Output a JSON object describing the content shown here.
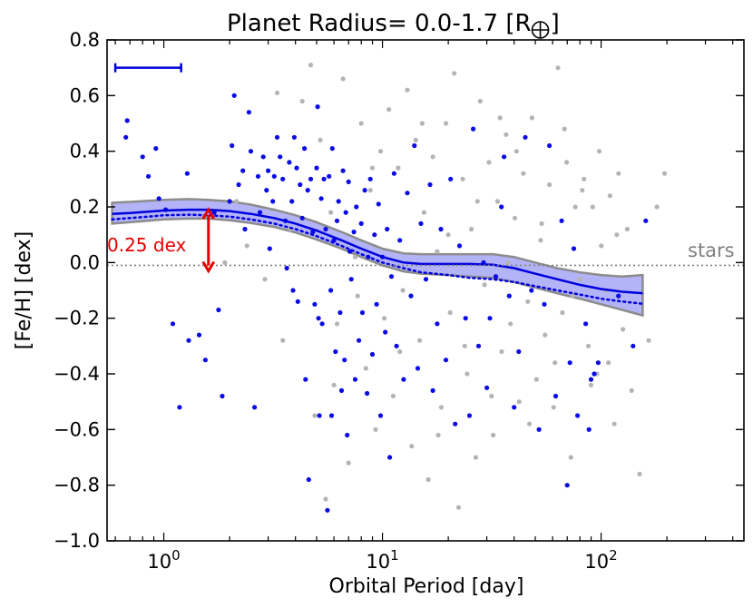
{
  "chart_data": {
    "type": "scatter",
    "title": "Planet Radius= 0.0-1.7 [R",
    "title_suffix": "]",
    "title_symbol": "earth-symbol",
    "xlabel": "Orbital Period [day]",
    "ylabel": "[Fe/H] [dex]",
    "xscale": "log",
    "xlim": [
      0.55,
      450
    ],
    "ylim": [
      -1.0,
      0.8
    ],
    "yticks": [
      -1.0,
      -0.8,
      -0.6,
      -0.4,
      -0.2,
      0.0,
      0.2,
      0.4,
      0.6,
      0.8
    ],
    "ytick_labels": [
      "−1.0",
      "−0.8",
      "−0.6",
      "−0.4",
      "−0.2",
      "0.0",
      "0.2",
      "0.4",
      "0.6",
      "0.8"
    ],
    "xticks": [
      {
        "value": 1,
        "base": "10",
        "exp": "0"
      },
      {
        "value": 10,
        "base": "10",
        "exp": "1"
      },
      {
        "value": 100,
        "base": "10",
        "exp": "2"
      }
    ],
    "colors": {
      "planets": "#0a0ae6",
      "stars": "#b4b4b4",
      "trend": "#0000dd",
      "band_fill": "#8a8af2",
      "band_edge": "#8c8c8c",
      "annotation": "#e60000",
      "reference": "#808080"
    },
    "reference_line": {
      "y": -0.01,
      "label": "stars"
    },
    "annotation": {
      "label": "0.25 dex",
      "x": 1.6,
      "y_top": 0.19,
      "y_bottom": -0.03
    },
    "error_bar": {
      "x_from": 0.6,
      "x_to": 1.2,
      "y": 0.7
    },
    "trend": {
      "x": [
        0.58,
        0.7,
        0.85,
        1.0,
        1.3,
        1.6,
        2.0,
        2.5,
        3.2,
        4.0,
        5.0,
        6.5,
        8.0,
        10,
        12.5,
        15,
        20,
        25,
        32,
        40,
        50,
        63,
        80,
        100,
        125,
        155
      ],
      "median": [
        0.175,
        0.178,
        0.183,
        0.187,
        0.19,
        0.19,
        0.185,
        0.175,
        0.16,
        0.14,
        0.115,
        0.08,
        0.05,
        0.02,
        0.0,
        -0.005,
        -0.005,
        -0.005,
        -0.008,
        -0.02,
        -0.04,
        -0.06,
        -0.08,
        -0.095,
        -0.105,
        -0.11
      ],
      "mean": [
        0.155,
        0.16,
        0.165,
        0.17,
        0.172,
        0.17,
        0.165,
        0.155,
        0.14,
        0.12,
        0.095,
        0.06,
        0.03,
        0.0,
        -0.02,
        -0.035,
        -0.045,
        -0.055,
        -0.06,
        -0.07,
        -0.085,
        -0.1,
        -0.115,
        -0.13,
        -0.14,
        -0.148
      ],
      "upper": [
        0.215,
        0.218,
        0.222,
        0.225,
        0.228,
        0.225,
        0.22,
        0.208,
        0.19,
        0.17,
        0.145,
        0.11,
        0.08,
        0.05,
        0.033,
        0.03,
        0.03,
        0.03,
        0.03,
        0.02,
        0.0,
        -0.02,
        -0.035,
        -0.045,
        -0.05,
        -0.045
      ],
      "lower": [
        0.14,
        0.145,
        0.15,
        0.155,
        0.158,
        0.158,
        0.152,
        0.142,
        0.128,
        0.108,
        0.083,
        0.05,
        0.02,
        -0.01,
        -0.032,
        -0.04,
        -0.045,
        -0.05,
        -0.055,
        -0.07,
        -0.09,
        -0.11,
        -0.13,
        -0.15,
        -0.17,
        -0.19
      ]
    },
    "series": [
      {
        "name": "planets",
        "color": "#0a0ae6",
        "points": [
          [
            0.68,
            0.51
          ],
          [
            0.67,
            0.45
          ],
          [
            0.8,
            0.38
          ],
          [
            0.85,
            0.31
          ],
          [
            0.92,
            0.41
          ],
          [
            0.95,
            0.23
          ],
          [
            1.02,
            0.19
          ],
          [
            1.1,
            -0.22
          ],
          [
            1.18,
            -0.52
          ],
          [
            1.28,
            0.32
          ],
          [
            1.3,
            -0.28
          ],
          [
            1.45,
            -0.26
          ],
          [
            1.55,
            -0.35
          ],
          [
            1.7,
            0.18
          ],
          [
            1.78,
            -0.17
          ],
          [
            1.85,
            -0.48
          ],
          [
            2.0,
            0.22
          ],
          [
            2.05,
            0.42
          ],
          [
            2.1,
            0.6
          ],
          [
            2.2,
            0.28
          ],
          [
            2.3,
            0.33
          ],
          [
            2.35,
            0.12
          ],
          [
            2.45,
            0.54
          ],
          [
            2.5,
            0.4
          ],
          [
            2.6,
            -0.52
          ],
          [
            2.7,
            0.31
          ],
          [
            2.75,
            0.18
          ],
          [
            2.85,
            0.38
          ],
          [
            2.95,
            0.26
          ],
          [
            3.0,
            0.33
          ],
          [
            3.05,
            0.05
          ],
          [
            3.15,
            0.22
          ],
          [
            3.2,
            0.31
          ],
          [
            3.3,
            0.45
          ],
          [
            3.4,
            0.38
          ],
          [
            3.5,
            0.3
          ],
          [
            3.6,
            0.15
          ],
          [
            3.65,
            -0.02
          ],
          [
            3.75,
            0.36
          ],
          [
            3.85,
            0.22
          ],
          [
            3.9,
            -0.1
          ],
          [
            3.95,
            0.45
          ],
          [
            4.05,
            0.34
          ],
          [
            4.1,
            -0.14
          ],
          [
            4.2,
            0.28
          ],
          [
            4.3,
            0.16
          ],
          [
            4.4,
            0.41
          ],
          [
            4.45,
            -0.42
          ],
          [
            4.55,
            0.26
          ],
          [
            4.6,
            -0.78
          ],
          [
            4.7,
            0.3
          ],
          [
            4.8,
            0.11
          ],
          [
            4.9,
            -0.15
          ],
          [
            5.0,
            0.34
          ],
          [
            5.05,
            0.56
          ],
          [
            5.1,
            -0.2
          ],
          [
            5.15,
            -0.55
          ],
          [
            5.25,
            0.23
          ],
          [
            5.3,
            -0.22
          ],
          [
            5.4,
            0.3
          ],
          [
            5.5,
            0.12
          ],
          [
            5.6,
            -0.89
          ],
          [
            5.7,
            0.31
          ],
          [
            5.8,
            -0.1
          ],
          [
            5.85,
            -0.55
          ],
          [
            5.9,
            0.41
          ],
          [
            6.0,
            0.08
          ],
          [
            6.1,
            -0.32
          ],
          [
            6.2,
            0.15
          ],
          [
            6.3,
            0.22
          ],
          [
            6.4,
            -0.18
          ],
          [
            6.5,
            -0.46
          ],
          [
            6.6,
            0.33
          ],
          [
            6.7,
            -0.35
          ],
          [
            6.8,
            0.18
          ],
          [
            6.9,
            -0.62
          ],
          [
            7.0,
            0.29
          ],
          [
            7.1,
            0.04
          ],
          [
            7.2,
            -0.06
          ],
          [
            7.4,
            0.11
          ],
          [
            7.5,
            -0.42
          ],
          [
            7.6,
            0.2
          ],
          [
            7.8,
            -0.28
          ],
          [
            8.0,
            0.14
          ],
          [
            8.1,
            -0.18
          ],
          [
            8.3,
            0.26
          ],
          [
            8.5,
            -0.47
          ],
          [
            8.6,
            0.02
          ],
          [
            8.8,
            0.3
          ],
          [
            9.0,
            -0.33
          ],
          [
            9.2,
            0.1
          ],
          [
            9.4,
            -0.15
          ],
          [
            9.6,
            0.21
          ],
          [
            9.8,
            -0.55
          ],
          [
            10.0,
            0.02
          ],
          [
            10.3,
            -0.25
          ],
          [
            10.5,
            0.12
          ],
          [
            10.8,
            -0.7
          ],
          [
            11.0,
            -0.05
          ],
          [
            11.3,
            0.32
          ],
          [
            11.6,
            -0.3
          ],
          [
            12.0,
            0.08
          ],
          [
            12.5,
            -0.42
          ],
          [
            13.0,
            0.25
          ],
          [
            13.5,
            -0.12
          ],
          [
            14.0,
            0.42
          ],
          [
            14.5,
            -0.38
          ],
          [
            15.0,
            0.14
          ],
          [
            15.8,
            -0.06
          ],
          [
            16.5,
            0.28
          ],
          [
            17.0,
            -0.46
          ],
          [
            17.8,
            -0.22
          ],
          [
            18.5,
            0.12
          ],
          [
            19.5,
            -0.35
          ],
          [
            20.5,
            0.3
          ],
          [
            21.5,
            -0.58
          ],
          [
            22.5,
            0.06
          ],
          [
            24.0,
            -0.2
          ],
          [
            25.0,
            -0.55
          ],
          [
            26.0,
            0.48
          ],
          [
            27.5,
            -0.3
          ],
          [
            29.0,
            0.0
          ],
          [
            30.0,
            -0.45
          ],
          [
            31.0,
            -0.2
          ],
          [
            33.0,
            -0.05
          ],
          [
            35.0,
            0.2
          ],
          [
            36.0,
            0.38
          ],
          [
            38.0,
            -0.12
          ],
          [
            40.0,
            -0.52
          ],
          [
            42.0,
            -0.32
          ],
          [
            45.0,
            0.45
          ],
          [
            48.0,
            -0.1
          ],
          [
            52.0,
            -0.6
          ],
          [
            55.0,
            -0.15
          ],
          [
            58.0,
            0.42
          ],
          [
            62.0,
            -0.48
          ],
          [
            66.0,
            0.15
          ],
          [
            70.0,
            -0.8
          ],
          [
            72.0,
            -0.36
          ],
          [
            75.0,
            0.05
          ],
          [
            78.0,
            -0.55
          ],
          [
            85.0,
            -0.22
          ],
          [
            88.0,
            -0.6
          ],
          [
            90.0,
            -0.42
          ],
          [
            93.0,
            -0.4
          ],
          [
            97.0,
            -0.36
          ],
          [
            120.0,
            -0.12
          ],
          [
            140.0,
            -0.3
          ],
          [
            160.0,
            0.15
          ]
        ]
      },
      {
        "name": "stars",
        "color": "#b4b4b4",
        "points": [
          [
            1.9,
            0.0
          ],
          [
            2.15,
            0.22
          ],
          [
            2.4,
            0.06
          ],
          [
            2.9,
            -0.06
          ],
          [
            3.3,
            0.61
          ],
          [
            3.5,
            -0.28
          ],
          [
            3.8,
            0.12
          ],
          [
            4.3,
            0.58
          ],
          [
            4.7,
            0.71
          ],
          [
            4.9,
            -0.55
          ],
          [
            5.2,
            0.44
          ],
          [
            5.5,
            -0.85
          ],
          [
            5.8,
            0.18
          ],
          [
            6.2,
            -0.22
          ],
          [
            6.6,
            0.66
          ],
          [
            7.0,
            -0.72
          ],
          [
            7.5,
            0.02
          ],
          [
            8.0,
            0.5
          ],
          [
            8.4,
            -0.38
          ],
          [
            8.8,
            0.26
          ],
          [
            9.3,
            -0.6
          ],
          [
            9.8,
            0.4
          ],
          [
            10.2,
            -0.2
          ],
          [
            10.7,
            0.55
          ],
          [
            11.2,
            -0.48
          ],
          [
            11.8,
            0.34
          ],
          [
            12.4,
            -0.1
          ],
          [
            13.0,
            0.62
          ],
          [
            13.6,
            -0.66
          ],
          [
            14.2,
            0.44
          ],
          [
            14.8,
            -0.28
          ],
          [
            15.5,
            0.18
          ],
          [
            16.2,
            -0.78
          ],
          [
            17.0,
            0.38
          ],
          [
            17.8,
            0.04
          ],
          [
            18.6,
            -0.52
          ],
          [
            19.5,
            0.5
          ],
          [
            20.4,
            -0.18
          ],
          [
            21.3,
            0.68
          ],
          [
            22.3,
            -0.88
          ],
          [
            23.3,
            0.3
          ],
          [
            24.4,
            -0.4
          ],
          [
            25.5,
            0.12
          ],
          [
            26.7,
            -0.7
          ],
          [
            28.0,
            0.58
          ],
          [
            29.3,
            -0.08
          ],
          [
            30.7,
            0.36
          ],
          [
            32.1,
            -0.62
          ],
          [
            33.6,
            0.22
          ],
          [
            35.1,
            -0.32
          ],
          [
            36.8,
            0.46
          ],
          [
            38.5,
            -0.22
          ],
          [
            40.3,
            0.16
          ],
          [
            42.2,
            -0.5
          ],
          [
            44.1,
            0.32
          ],
          [
            46.2,
            -0.14
          ],
          [
            48.3,
            0.52
          ],
          [
            50.6,
            -0.42
          ],
          [
            52.9,
            0.08
          ],
          [
            55.4,
            -0.26
          ],
          [
            58.0,
            0.28
          ],
          [
            60.7,
            -0.52
          ],
          [
            63.5,
            0.7
          ],
          [
            66.5,
            -0.18
          ],
          [
            69.6,
            0.36
          ],
          [
            72.8,
            -0.7
          ],
          [
            76.2,
            0.2
          ],
          [
            79.8,
            -0.06
          ],
          [
            83.5,
            0.3
          ],
          [
            87.4,
            -0.3
          ],
          [
            91.5,
            0.2
          ],
          [
            95.7,
            -0.4
          ],
          [
            100.2,
            0.06
          ],
          [
            104.9,
            -0.1
          ],
          [
            109.8,
            0.24
          ],
          [
            114.9,
            -0.58
          ],
          [
            120.2,
            0.32
          ],
          [
            125.8,
            -0.24
          ],
          [
            131.7,
            0.12
          ],
          [
            137.9,
            -0.46
          ],
          [
            150.0,
            -0.76
          ],
          [
            165.0,
            -0.28
          ],
          [
            180.0,
            0.2
          ],
          [
            195.0,
            0.32
          ],
          [
            6.0,
            -0.44
          ],
          [
            7.7,
            -0.12
          ],
          [
            9.0,
            0.34
          ],
          [
            12.0,
            -0.32
          ],
          [
            15.2,
            0.5
          ],
          [
            18.0,
            -0.62
          ],
          [
            20.0,
            0.1
          ],
          [
            23.8,
            -0.3
          ],
          [
            27.2,
            0.22
          ],
          [
            31.5,
            -0.48
          ],
          [
            34.5,
            0.52
          ],
          [
            37.5,
            0.0
          ],
          [
            41.0,
            0.4
          ],
          [
            47.0,
            -0.58
          ],
          [
            53.5,
            0.14
          ],
          [
            61.5,
            -0.36
          ],
          [
            68.0,
            0.48
          ],
          [
            74.0,
            -0.12
          ],
          [
            82.0,
            0.26
          ],
          [
            90.0,
            -0.44
          ],
          [
            98.0,
            0.4
          ],
          [
            108.0,
            -0.36
          ],
          [
            118.0,
            0.1
          ]
        ]
      }
    ]
  }
}
